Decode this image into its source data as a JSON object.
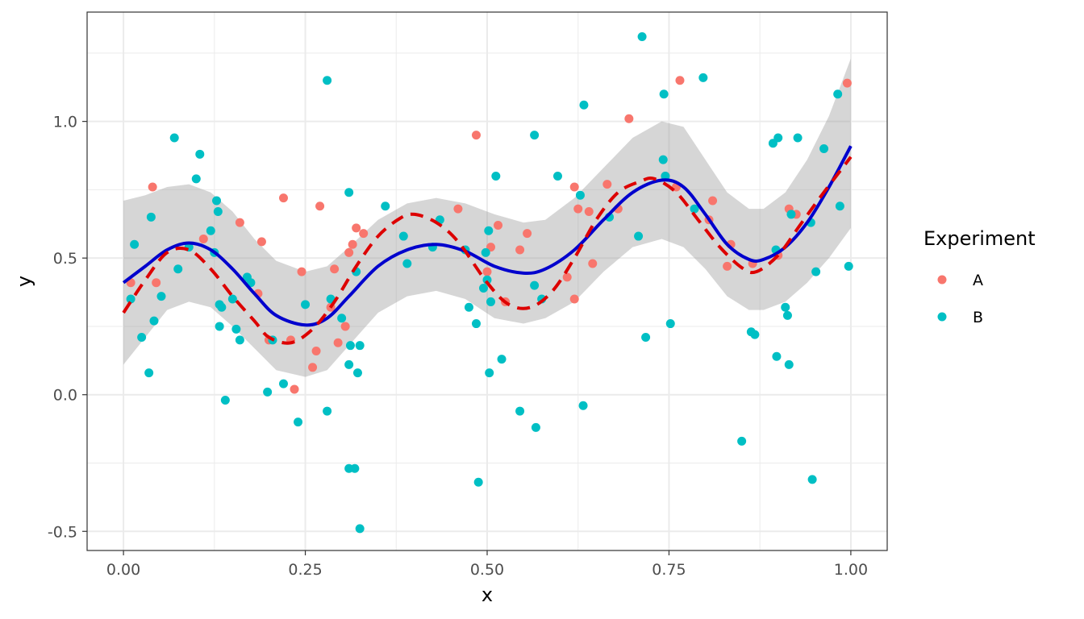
{
  "chart_data": {
    "type": "scatter",
    "xlabel": "x",
    "ylabel": "y",
    "xlim": [
      -0.05,
      1.05
    ],
    "ylim": [
      -0.57,
      1.4
    ],
    "x_ticks": [
      {
        "value": 0.0,
        "label": "0.00"
      },
      {
        "value": 0.25,
        "label": "0.25"
      },
      {
        "value": 0.5,
        "label": "0.50"
      },
      {
        "value": 0.75,
        "label": "0.75"
      },
      {
        "value": 1.0,
        "label": "1.00"
      }
    ],
    "y_ticks": [
      {
        "value": -0.5,
        "label": "-0.5"
      },
      {
        "value": 0.0,
        "label": "0.0"
      },
      {
        "value": 0.5,
        "label": "0.5"
      },
      {
        "value": 1.0,
        "label": "1.0"
      }
    ],
    "grid": true,
    "legend": {
      "title": "Experiment",
      "position": "right",
      "entries": [
        {
          "label": "A",
          "color": "#F8766D"
        },
        {
          "label": "B",
          "color": "#00BFC4"
        }
      ]
    },
    "series": [
      {
        "name": "A",
        "color": "#F8766D",
        "points": [
          [
            0.01,
            0.41
          ],
          [
            0.04,
            0.76
          ],
          [
            0.045,
            0.41
          ],
          [
            0.11,
            0.57
          ],
          [
            0.16,
            0.63
          ],
          [
            0.185,
            0.37
          ],
          [
            0.19,
            0.56
          ],
          [
            0.2,
            0.2
          ],
          [
            0.22,
            0.72
          ],
          [
            0.23,
            0.2
          ],
          [
            0.235,
            0.02
          ],
          [
            0.245,
            0.45
          ],
          [
            0.26,
            0.1
          ],
          [
            0.265,
            0.16
          ],
          [
            0.27,
            0.69
          ],
          [
            0.285,
            0.32
          ],
          [
            0.29,
            0.46
          ],
          [
            0.295,
            0.19
          ],
          [
            0.305,
            0.25
          ],
          [
            0.31,
            0.52
          ],
          [
            0.315,
            0.55
          ],
          [
            0.32,
            0.61
          ],
          [
            0.33,
            0.59
          ],
          [
            0.485,
            0.95
          ],
          [
            0.5,
            0.45
          ],
          [
            0.505,
            0.54
          ],
          [
            0.515,
            0.62
          ],
          [
            0.525,
            0.34
          ],
          [
            0.545,
            0.53
          ],
          [
            0.555,
            0.59
          ],
          [
            0.46,
            0.68
          ],
          [
            0.61,
            0.43
          ],
          [
            0.62,
            0.76
          ],
          [
            0.625,
            0.68
          ],
          [
            0.64,
            0.67
          ],
          [
            0.645,
            0.48
          ],
          [
            0.665,
            0.77
          ],
          [
            0.68,
            0.68
          ],
          [
            0.695,
            1.01
          ],
          [
            0.745,
            0.8
          ],
          [
            0.76,
            0.76
          ],
          [
            0.765,
            1.15
          ],
          [
            0.805,
            0.64
          ],
          [
            0.81,
            0.71
          ],
          [
            0.83,
            0.47
          ],
          [
            0.835,
            0.55
          ],
          [
            0.865,
            0.48
          ],
          [
            0.9,
            0.51
          ],
          [
            0.915,
            0.68
          ],
          [
            0.925,
            0.66
          ],
          [
            0.995,
            1.14
          ],
          [
            0.62,
            0.35
          ]
        ]
      },
      {
        "name": "B",
        "color": "#00BFC4",
        "points": [
          [
            0.01,
            0.35
          ],
          [
            0.015,
            0.55
          ],
          [
            0.025,
            0.21
          ],
          [
            0.035,
            0.08
          ],
          [
            0.038,
            0.65
          ],
          [
            0.042,
            0.27
          ],
          [
            0.052,
            0.36
          ],
          [
            0.07,
            0.94
          ],
          [
            0.075,
            0.46
          ],
          [
            0.09,
            0.54
          ],
          [
            0.1,
            0.79
          ],
          [
            0.105,
            0.88
          ],
          [
            0.12,
            0.6
          ],
          [
            0.125,
            0.52
          ],
          [
            0.128,
            0.71
          ],
          [
            0.13,
            0.67
          ],
          [
            0.132,
            0.33
          ],
          [
            0.132,
            0.25
          ],
          [
            0.135,
            0.32
          ],
          [
            0.14,
            -0.02
          ],
          [
            0.15,
            0.35
          ],
          [
            0.155,
            0.24
          ],
          [
            0.16,
            0.2
          ],
          [
            0.17,
            0.43
          ],
          [
            0.175,
            0.41
          ],
          [
            0.198,
            0.01
          ],
          [
            0.205,
            0.2
          ],
          [
            0.22,
            0.04
          ],
          [
            0.24,
            -0.1
          ],
          [
            0.25,
            0.33
          ],
          [
            0.28,
            -0.06
          ],
          [
            0.28,
            1.15
          ],
          [
            0.285,
            0.35
          ],
          [
            0.3,
            0.28
          ],
          [
            0.31,
            0.74
          ],
          [
            0.31,
            0.11
          ],
          [
            0.312,
            0.18
          ],
          [
            0.31,
            -0.27
          ],
          [
            0.318,
            -0.27
          ],
          [
            0.32,
            0.45
          ],
          [
            0.322,
            0.08
          ],
          [
            0.325,
            0.18
          ],
          [
            0.325,
            -0.49
          ],
          [
            0.36,
            0.69
          ],
          [
            0.385,
            0.58
          ],
          [
            0.39,
            0.48
          ],
          [
            0.425,
            0.54
          ],
          [
            0.435,
            0.64
          ],
          [
            0.47,
            0.53
          ],
          [
            0.475,
            0.32
          ],
          [
            0.485,
            0.26
          ],
          [
            0.488,
            -0.32
          ],
          [
            0.495,
            0.39
          ],
          [
            0.498,
            0.52
          ],
          [
            0.5,
            0.42
          ],
          [
            0.502,
            0.6
          ],
          [
            0.505,
            0.34
          ],
          [
            0.503,
            0.08
          ],
          [
            0.512,
            0.8
          ],
          [
            0.52,
            0.13
          ],
          [
            0.545,
            -0.06
          ],
          [
            0.565,
            0.4
          ],
          [
            0.565,
            0.95
          ],
          [
            0.567,
            -0.12
          ],
          [
            0.575,
            0.35
          ],
          [
            0.597,
            0.8
          ],
          [
            0.628,
            0.73
          ],
          [
            0.632,
            -0.04
          ],
          [
            0.633,
            1.06
          ],
          [
            0.668,
            0.65
          ],
          [
            0.708,
            0.58
          ],
          [
            0.713,
            1.31
          ],
          [
            0.718,
            0.21
          ],
          [
            0.742,
            0.86
          ],
          [
            0.743,
            1.1
          ],
          [
            0.745,
            0.8
          ],
          [
            0.752,
            0.26
          ],
          [
            0.785,
            0.68
          ],
          [
            0.797,
            1.16
          ],
          [
            0.85,
            -0.17
          ],
          [
            0.863,
            0.23
          ],
          [
            0.868,
            0.22
          ],
          [
            0.893,
            0.92
          ],
          [
            0.897,
            0.53
          ],
          [
            0.898,
            0.14
          ],
          [
            0.9,
            0.94
          ],
          [
            0.91,
            0.32
          ],
          [
            0.913,
            0.29
          ],
          [
            0.915,
            0.11
          ],
          [
            0.918,
            0.66
          ],
          [
            0.927,
            0.94
          ],
          [
            0.945,
            0.63
          ],
          [
            0.947,
            -0.31
          ],
          [
            0.952,
            0.45
          ],
          [
            0.963,
            0.9
          ],
          [
            0.982,
            1.1
          ],
          [
            0.985,
            0.69
          ],
          [
            0.997,
            0.47
          ]
        ]
      },
      {
        "name": "",
        "type": "smooth-solid",
        "color": "#0000CD",
        "points": [
          [
            0.0,
            0.41
          ],
          [
            0.03,
            0.47
          ],
          [
            0.06,
            0.53
          ],
          [
            0.09,
            0.555
          ],
          [
            0.12,
            0.53
          ],
          [
            0.15,
            0.46
          ],
          [
            0.18,
            0.37
          ],
          [
            0.21,
            0.29
          ],
          [
            0.25,
            0.255
          ],
          [
            0.28,
            0.28
          ],
          [
            0.31,
            0.36
          ],
          [
            0.35,
            0.47
          ],
          [
            0.39,
            0.53
          ],
          [
            0.43,
            0.55
          ],
          [
            0.47,
            0.525
          ],
          [
            0.51,
            0.47
          ],
          [
            0.55,
            0.445
          ],
          [
            0.58,
            0.46
          ],
          [
            0.62,
            0.53
          ],
          [
            0.66,
            0.64
          ],
          [
            0.7,
            0.74
          ],
          [
            0.74,
            0.785
          ],
          [
            0.77,
            0.76
          ],
          [
            0.8,
            0.66
          ],
          [
            0.83,
            0.55
          ],
          [
            0.86,
            0.495
          ],
          [
            0.88,
            0.495
          ],
          [
            0.91,
            0.54
          ],
          [
            0.94,
            0.63
          ],
          [
            0.97,
            0.76
          ],
          [
            1.0,
            0.91
          ]
        ]
      },
      {
        "name": "",
        "type": "smooth-dashed",
        "color": "#DD0000",
        "points": [
          [
            0.0,
            0.3
          ],
          [
            0.03,
            0.42
          ],
          [
            0.06,
            0.52
          ],
          [
            0.09,
            0.53
          ],
          [
            0.12,
            0.46
          ],
          [
            0.15,
            0.36
          ],
          [
            0.18,
            0.27
          ],
          [
            0.2,
            0.21
          ],
          [
            0.23,
            0.19
          ],
          [
            0.26,
            0.24
          ],
          [
            0.29,
            0.34
          ],
          [
            0.32,
            0.47
          ],
          [
            0.35,
            0.58
          ],
          [
            0.38,
            0.645
          ],
          [
            0.4,
            0.66
          ],
          [
            0.43,
            0.63
          ],
          [
            0.46,
            0.56
          ],
          [
            0.5,
            0.41
          ],
          [
            0.53,
            0.33
          ],
          [
            0.56,
            0.32
          ],
          [
            0.59,
            0.38
          ],
          [
            0.62,
            0.5
          ],
          [
            0.65,
            0.64
          ],
          [
            0.68,
            0.74
          ],
          [
            0.71,
            0.78
          ],
          [
            0.73,
            0.79
          ],
          [
            0.76,
            0.74
          ],
          [
            0.79,
            0.64
          ],
          [
            0.82,
            0.54
          ],
          [
            0.85,
            0.465
          ],
          [
            0.87,
            0.45
          ],
          [
            0.9,
            0.51
          ],
          [
            0.93,
            0.62
          ],
          [
            0.96,
            0.73
          ],
          [
            1.0,
            0.87
          ]
        ]
      }
    ],
    "confidence_band": {
      "color": "#999999",
      "upper": [
        [
          0.0,
          0.71
        ],
        [
          0.03,
          0.73
        ],
        [
          0.06,
          0.76
        ],
        [
          0.09,
          0.77
        ],
        [
          0.12,
          0.74
        ],
        [
          0.15,
          0.67
        ],
        [
          0.18,
          0.57
        ],
        [
          0.21,
          0.49
        ],
        [
          0.25,
          0.45
        ],
        [
          0.28,
          0.47
        ],
        [
          0.31,
          0.54
        ],
        [
          0.35,
          0.64
        ],
        [
          0.39,
          0.7
        ],
        [
          0.43,
          0.72
        ],
        [
          0.47,
          0.7
        ],
        [
          0.51,
          0.66
        ],
        [
          0.55,
          0.63
        ],
        [
          0.58,
          0.64
        ],
        [
          0.62,
          0.72
        ],
        [
          0.66,
          0.83
        ],
        [
          0.7,
          0.94
        ],
        [
          0.74,
          1.0
        ],
        [
          0.77,
          0.98
        ],
        [
          0.8,
          0.86
        ],
        [
          0.83,
          0.74
        ],
        [
          0.86,
          0.68
        ],
        [
          0.88,
          0.68
        ],
        [
          0.91,
          0.74
        ],
        [
          0.94,
          0.86
        ],
        [
          0.97,
          1.02
        ],
        [
          1.0,
          1.23
        ]
      ],
      "lower": [
        [
          0.0,
          0.11
        ],
        [
          0.03,
          0.21
        ],
        [
          0.06,
          0.31
        ],
        [
          0.09,
          0.34
        ],
        [
          0.12,
          0.32
        ],
        [
          0.15,
          0.25
        ],
        [
          0.18,
          0.17
        ],
        [
          0.21,
          0.09
        ],
        [
          0.25,
          0.065
        ],
        [
          0.28,
          0.09
        ],
        [
          0.31,
          0.18
        ],
        [
          0.35,
          0.3
        ],
        [
          0.39,
          0.36
        ],
        [
          0.43,
          0.38
        ],
        [
          0.47,
          0.35
        ],
        [
          0.51,
          0.28
        ],
        [
          0.55,
          0.26
        ],
        [
          0.58,
          0.28
        ],
        [
          0.62,
          0.34
        ],
        [
          0.66,
          0.45
        ],
        [
          0.7,
          0.54
        ],
        [
          0.74,
          0.57
        ],
        [
          0.77,
          0.54
        ],
        [
          0.8,
          0.46
        ],
        [
          0.83,
          0.36
        ],
        [
          0.86,
          0.31
        ],
        [
          0.88,
          0.31
        ],
        [
          0.91,
          0.34
        ],
        [
          0.94,
          0.41
        ],
        [
          0.97,
          0.5
        ],
        [
          1.0,
          0.61
        ]
      ]
    }
  }
}
